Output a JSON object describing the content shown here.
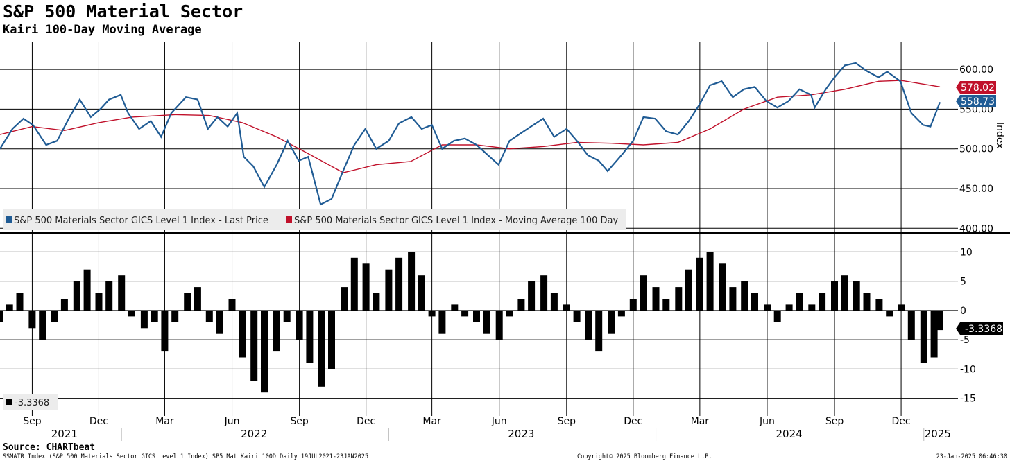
{
  "header": {
    "title": "S&P 500 Material Sector",
    "subtitle": "Kairi 100-Day Moving Average"
  },
  "footer": {
    "source": "Source: CHARTbeat",
    "ticker_line": "SSMATR Index (S&P 500 Materials Sector GICS Level 1 Index) SP5 Mat Kairi 100D  Daily 19JUL2021-23JAN2025",
    "copyright": "Copyright© 2025 Bloomberg Finance L.P.",
    "timestamp": "23-Jan-2025 06:46:30"
  },
  "colors": {
    "price": "#1f5b94",
    "moving_average": "#c0102a",
    "kairi": "#000000",
    "grid": "#000000"
  },
  "chart_data": [
    {
      "type": "line",
      "ylabel": "Index",
      "ylim": [
        395,
        635
      ],
      "yticks": [
        400,
        450,
        500,
        550,
        600
      ],
      "ytick_labels": [
        "400.00",
        "450.00",
        "500.00",
        "550.00",
        "600.00"
      ],
      "grid": true,
      "legend_placement": "bottom-left",
      "x_months": [
        "Sep",
        "Dec",
        "Mar",
        "Jun",
        "Sep",
        "Dec",
        "Mar",
        "Jun",
        "Sep",
        "Dec",
        "Mar",
        "Jun",
        "Sep",
        "Dec"
      ],
      "x_years": [
        "2021",
        "2022",
        "2023",
        "2024",
        "2025"
      ],
      "series": [
        {
          "name": "S&P 500 Materials Sector GICS Level 1 Index - Last Price",
          "last_value": "558.73",
          "points": [
            [
              "2021-07-19",
              500
            ],
            [
              "2021-08-05",
              525
            ],
            [
              "2021-08-20",
              538
            ],
            [
              "2021-09-02",
              530
            ],
            [
              "2021-09-20",
              505
            ],
            [
              "2021-10-05",
              510
            ],
            [
              "2021-10-22",
              540
            ],
            [
              "2021-11-05",
              562
            ],
            [
              "2021-11-20",
              540
            ],
            [
              "2021-12-03",
              550
            ],
            [
              "2021-12-15",
              562
            ],
            [
              "2021-12-31",
              568
            ],
            [
              "2022-01-10",
              545
            ],
            [
              "2022-01-25",
              525
            ],
            [
              "2022-02-10",
              535
            ],
            [
              "2022-02-24",
              515
            ],
            [
              "2022-03-10",
              545
            ],
            [
              "2022-03-30",
              565
            ],
            [
              "2022-04-15",
              562
            ],
            [
              "2022-04-29",
              525
            ],
            [
              "2022-05-12",
              540
            ],
            [
              "2022-05-26",
              528
            ],
            [
              "2022-06-08",
              545
            ],
            [
              "2022-06-17",
              490
            ],
            [
              "2022-06-30",
              478
            ],
            [
              "2022-07-15",
              452
            ],
            [
              "2022-08-01",
              480
            ],
            [
              "2022-08-16",
              510
            ],
            [
              "2022-08-31",
              485
            ],
            [
              "2022-09-13",
              490
            ],
            [
              "2022-09-30",
              430
            ],
            [
              "2022-10-15",
              437
            ],
            [
              "2022-11-01",
              475
            ],
            [
              "2022-11-15",
              505
            ],
            [
              "2022-11-30",
              525
            ],
            [
              "2022-12-15",
              500
            ],
            [
              "2023-01-01",
              510
            ],
            [
              "2023-01-15",
              532
            ],
            [
              "2023-02-01",
              540
            ],
            [
              "2023-02-15",
              525
            ],
            [
              "2023-03-01",
              530
            ],
            [
              "2023-03-15",
              500
            ],
            [
              "2023-03-31",
              510
            ],
            [
              "2023-04-15",
              513
            ],
            [
              "2023-05-01",
              505
            ],
            [
              "2023-05-31",
              480
            ],
            [
              "2023-06-15",
              510
            ],
            [
              "2023-07-01",
              520
            ],
            [
              "2023-07-31",
              538
            ],
            [
              "2023-08-15",
              515
            ],
            [
              "2023-09-01",
              525
            ],
            [
              "2023-09-15",
              510
            ],
            [
              "2023-09-30",
              492
            ],
            [
              "2023-10-15",
              485
            ],
            [
              "2023-10-27",
              472
            ],
            [
              "2023-11-15",
              492
            ],
            [
              "2023-12-01",
              510
            ],
            [
              "2023-12-15",
              540
            ],
            [
              "2023-12-31",
              538
            ],
            [
              "2024-01-15",
              522
            ],
            [
              "2024-01-31",
              518
            ],
            [
              "2024-02-15",
              535
            ],
            [
              "2024-02-29",
              555
            ],
            [
              "2024-03-15",
              580
            ],
            [
              "2024-03-31",
              585
            ],
            [
              "2024-04-15",
              565
            ],
            [
              "2024-04-30",
              575
            ],
            [
              "2024-05-15",
              578
            ],
            [
              "2024-05-31",
              560
            ],
            [
              "2024-06-15",
              552
            ],
            [
              "2024-06-30",
              560
            ],
            [
              "2024-07-15",
              575
            ],
            [
              "2024-07-31",
              568
            ],
            [
              "2024-08-05",
              552
            ],
            [
              "2024-08-20",
              575
            ],
            [
              "2024-09-01",
              590
            ],
            [
              "2024-09-15",
              605
            ],
            [
              "2024-09-30",
              608
            ],
            [
              "2024-10-15",
              598
            ],
            [
              "2024-10-31",
              590
            ],
            [
              "2024-11-12",
              597
            ],
            [
              "2024-11-30",
              585
            ],
            [
              "2024-12-15",
              545
            ],
            [
              "2024-12-31",
              530
            ],
            [
              "2025-01-10",
              528
            ],
            [
              "2025-01-23",
              558.73
            ]
          ]
        },
        {
          "name": "S&P 500 Materials Sector GICS Level 1 Index - Moving Average 100 Day",
          "last_value": "578.02",
          "points": [
            [
              "2021-07-19",
              518
            ],
            [
              "2021-09-01",
              528
            ],
            [
              "2021-10-15",
              523
            ],
            [
              "2021-12-01",
              533
            ],
            [
              "2022-01-15",
              540
            ],
            [
              "2022-03-15",
              543
            ],
            [
              "2022-05-01",
              542
            ],
            [
              "2022-06-15",
              533
            ],
            [
              "2022-08-01",
              515
            ],
            [
              "2022-09-15",
              493
            ],
            [
              "2022-10-31",
              470
            ],
            [
              "2022-12-15",
              480
            ],
            [
              "2023-01-31",
              484
            ],
            [
              "2023-03-15",
              505
            ],
            [
              "2023-05-01",
              505
            ],
            [
              "2023-06-15",
              500
            ],
            [
              "2023-08-01",
              503
            ],
            [
              "2023-09-15",
              508
            ],
            [
              "2023-11-01",
              507
            ],
            [
              "2023-12-15",
              505
            ],
            [
              "2024-01-31",
              508
            ],
            [
              "2024-03-15",
              525
            ],
            [
              "2024-04-30",
              550
            ],
            [
              "2024-06-15",
              565
            ],
            [
              "2024-07-31",
              568
            ],
            [
              "2024-09-15",
              575
            ],
            [
              "2024-10-31",
              585
            ],
            [
              "2024-12-01",
              586
            ],
            [
              "2025-01-23",
              578.02
            ]
          ]
        }
      ]
    },
    {
      "type": "bar",
      "title": "",
      "ylim": [
        -18,
        13
      ],
      "yticks": [
        -15,
        -10,
        -5,
        0,
        5,
        10
      ],
      "ytick_labels": [
        "-15",
        "-10",
        "-5",
        "0",
        "5",
        "10"
      ],
      "grid": true,
      "legend_placement": "bottom-left",
      "series": [
        {
          "name": "-3.3368",
          "last_value": "-3.3368",
          "points": [
            [
              "2021-07-19",
              -2
            ],
            [
              "2021-08-01",
              1
            ],
            [
              "2021-08-15",
              3
            ],
            [
              "2021-09-01",
              -3
            ],
            [
              "2021-09-15",
              -5
            ],
            [
              "2021-10-01",
              -2
            ],
            [
              "2021-10-15",
              2
            ],
            [
              "2021-11-01",
              5
            ],
            [
              "2021-11-15",
              7
            ],
            [
              "2021-12-01",
              3
            ],
            [
              "2021-12-15",
              5
            ],
            [
              "2022-01-01",
              6
            ],
            [
              "2022-01-15",
              -1
            ],
            [
              "2022-02-01",
              -3
            ],
            [
              "2022-02-15",
              -2
            ],
            [
              "2022-03-01",
              -7
            ],
            [
              "2022-03-15",
              -2
            ],
            [
              "2022-04-01",
              3
            ],
            [
              "2022-04-15",
              4
            ],
            [
              "2022-05-01",
              -2
            ],
            [
              "2022-05-15",
              -4
            ],
            [
              "2022-06-01",
              2
            ],
            [
              "2022-06-15",
              -8
            ],
            [
              "2022-07-01",
              -12
            ],
            [
              "2022-07-15",
              -14
            ],
            [
              "2022-08-01",
              -7
            ],
            [
              "2022-08-15",
              -2
            ],
            [
              "2022-09-01",
              -5
            ],
            [
              "2022-09-15",
              -9
            ],
            [
              "2022-10-01",
              -13
            ],
            [
              "2022-10-15",
              -10
            ],
            [
              "2022-11-01",
              4
            ],
            [
              "2022-11-15",
              9
            ],
            [
              "2022-12-01",
              8
            ],
            [
              "2022-12-15",
              3
            ],
            [
              "2023-01-01",
              7
            ],
            [
              "2023-01-15",
              9
            ],
            [
              "2023-02-01",
              10
            ],
            [
              "2023-02-15",
              6
            ],
            [
              "2023-03-01",
              -1
            ],
            [
              "2023-03-15",
              -4
            ],
            [
              "2023-04-01",
              1
            ],
            [
              "2023-04-15",
              -1
            ],
            [
              "2023-05-01",
              -2
            ],
            [
              "2023-05-15",
              -4
            ],
            [
              "2023-06-01",
              -5
            ],
            [
              "2023-06-15",
              -1
            ],
            [
              "2023-07-01",
              2
            ],
            [
              "2023-07-15",
              5
            ],
            [
              "2023-08-01",
              6
            ],
            [
              "2023-08-15",
              3
            ],
            [
              "2023-09-01",
              1
            ],
            [
              "2023-09-15",
              -2
            ],
            [
              "2023-10-01",
              -5
            ],
            [
              "2023-10-15",
              -7
            ],
            [
              "2023-11-01",
              -4
            ],
            [
              "2023-11-15",
              -1
            ],
            [
              "2023-12-01",
              2
            ],
            [
              "2023-12-15",
              6
            ],
            [
              "2024-01-01",
              4
            ],
            [
              "2024-01-15",
              2
            ],
            [
              "2024-02-01",
              4
            ],
            [
              "2024-02-15",
              7
            ],
            [
              "2024-03-01",
              9
            ],
            [
              "2024-03-15",
              10
            ],
            [
              "2024-04-01",
              8
            ],
            [
              "2024-04-15",
              4
            ],
            [
              "2024-05-01",
              5
            ],
            [
              "2024-05-15",
              3
            ],
            [
              "2024-06-01",
              1
            ],
            [
              "2024-06-15",
              -2
            ],
            [
              "2024-07-01",
              1
            ],
            [
              "2024-07-15",
              3
            ],
            [
              "2024-08-01",
              1
            ],
            [
              "2024-08-15",
              3
            ],
            [
              "2024-09-01",
              5
            ],
            [
              "2024-09-15",
              6
            ],
            [
              "2024-10-01",
              5
            ],
            [
              "2024-10-15",
              3
            ],
            [
              "2024-11-01",
              2
            ],
            [
              "2024-11-15",
              -1
            ],
            [
              "2024-12-01",
              1
            ],
            [
              "2024-12-15",
              -5
            ],
            [
              "2025-01-01",
              -9
            ],
            [
              "2025-01-15",
              -8
            ],
            [
              "2025-01-23",
              -3.3368
            ]
          ]
        }
      ]
    }
  ]
}
